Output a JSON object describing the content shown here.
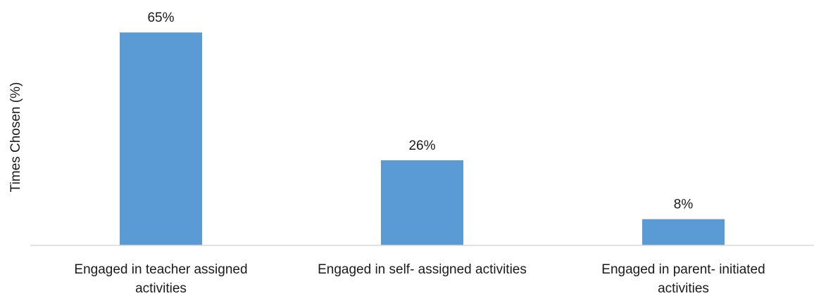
{
  "chart_data": {
    "type": "bar",
    "categories": [
      [
        "Engaged in teacher assigned",
        "activities"
      ],
      [
        "Engaged in self- assigned activities"
      ],
      [
        "Engaged in parent- initiated",
        "activities"
      ]
    ],
    "values": [
      65,
      26,
      8
    ],
    "data_labels": [
      "65%",
      "26%",
      "8%"
    ],
    "title": "",
    "xlabel": "",
    "ylabel": "Times Chosen (%)",
    "ylim": [
      0,
      70
    ],
    "grid": false,
    "legend": "none",
    "bar_color": "#5b9bd5",
    "axis_color": "#d9d9d9"
  }
}
